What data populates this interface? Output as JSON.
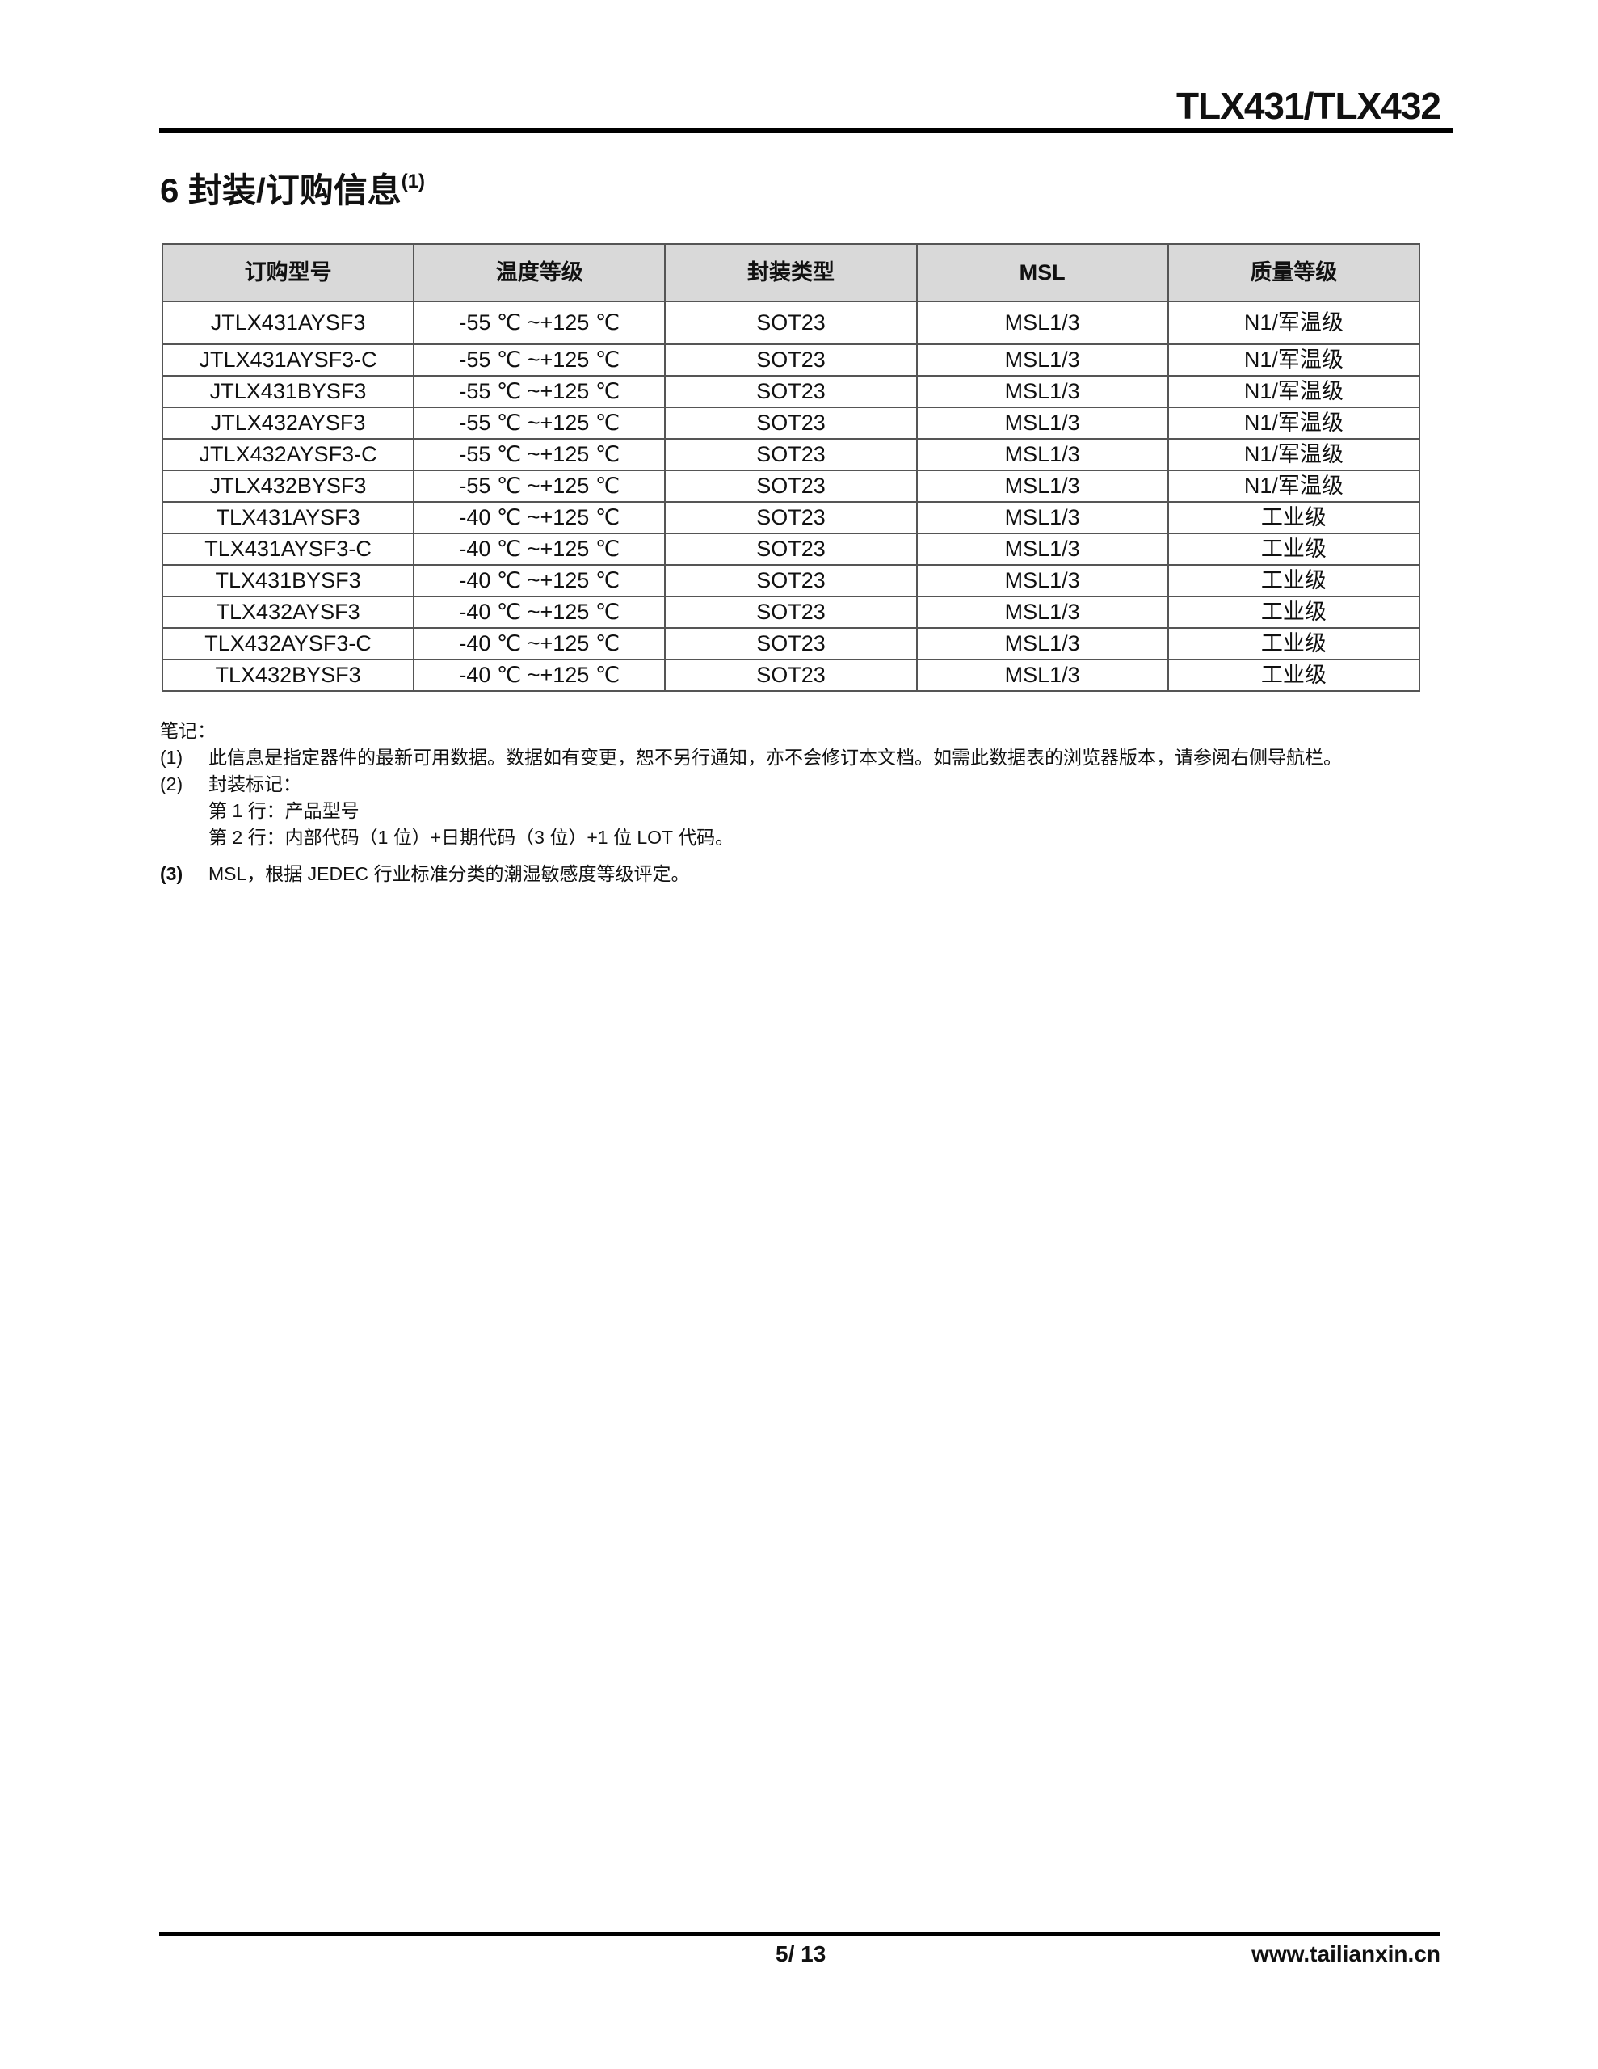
{
  "header": {
    "title": "TLX431/TLX432"
  },
  "section": {
    "title": "6 封装/订购信息",
    "sup": "(1)"
  },
  "table": {
    "columns": [
      "订购型号",
      "温度等级",
      "封装类型",
      "MSL",
      "质量等级"
    ],
    "rows": [
      [
        "JTLX431AYSF3",
        "-55 ℃ ~+125 ℃",
        "SOT23",
        "MSL1/3",
        "N1/军温级"
      ],
      [
        "JTLX431AYSF3-C",
        "-55 ℃ ~+125 ℃",
        "SOT23",
        "MSL1/3",
        "N1/军温级"
      ],
      [
        "JTLX431BYSF3",
        "-55 ℃ ~+125 ℃",
        "SOT23",
        "MSL1/3",
        "N1/军温级"
      ],
      [
        "JTLX432AYSF3",
        "-55 ℃ ~+125 ℃",
        "SOT23",
        "MSL1/3",
        "N1/军温级"
      ],
      [
        "JTLX432AYSF3-C",
        "-55 ℃ ~+125 ℃",
        "SOT23",
        "MSL1/3",
        "N1/军温级"
      ],
      [
        "JTLX432BYSF3",
        "-55 ℃ ~+125 ℃",
        "SOT23",
        "MSL1/3",
        "N1/军温级"
      ],
      [
        "TLX431AYSF3",
        "-40 ℃ ~+125 ℃",
        "SOT23",
        "MSL1/3",
        "工业级"
      ],
      [
        "TLX431AYSF3-C",
        "-40 ℃ ~+125 ℃",
        "SOT23",
        "MSL1/3",
        "工业级"
      ],
      [
        "TLX431BYSF3",
        "-40 ℃ ~+125 ℃",
        "SOT23",
        "MSL1/3",
        "工业级"
      ],
      [
        "TLX432AYSF3",
        "-40 ℃ ~+125 ℃",
        "SOT23",
        "MSL1/3",
        "工业级"
      ],
      [
        "TLX432AYSF3-C",
        "-40 ℃ ~+125 ℃",
        "SOT23",
        "MSL1/3",
        "工业级"
      ],
      [
        "TLX432BYSF3",
        "-40 ℃ ~+125 ℃",
        "SOT23",
        "MSL1/3",
        "工业级"
      ]
    ]
  },
  "notes": {
    "title": "笔记：",
    "n1_num": "(1)",
    "n1": "此信息是指定器件的最新可用数据。数据如有变更，恕不另行通知，亦不会修订本文档。如需此数据表的浏览器版本，请参阅右侧导航栏。",
    "n2_num": "(2)",
    "n2": "封装标记：",
    "n2_line1": "第 1 行：产品型号",
    "n2_line2": "第 2 行：内部代码（1 位）+日期代码（3 位）+1 位 LOT 代码。",
    "n3_num": "(3)",
    "n3": "MSL，根据 JEDEC 行业标准分类的潮湿敏感度等级评定。"
  },
  "footer": {
    "page": "5/ 13",
    "website": "www.tailianxin.cn"
  }
}
